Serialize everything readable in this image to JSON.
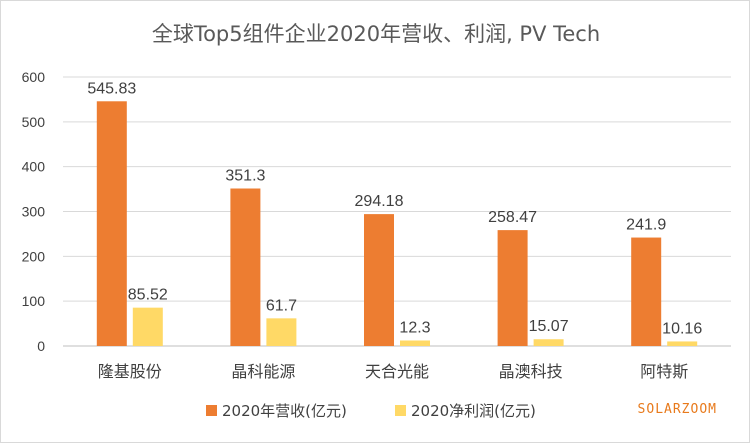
{
  "chart_data": {
    "type": "bar",
    "title": "全球Top5组件企业2020年营收、利润, PV Tech",
    "categories": [
      "隆基股份",
      "晶科能源",
      "天合光能",
      "晶澳科技",
      "阿特斯"
    ],
    "series": [
      {
        "name": "2020年营收(亿元)",
        "values": [
          545.83,
          351.3,
          294.18,
          258.47,
          241.9
        ],
        "color": "#ED7D31"
      },
      {
        "name": "2020净利润(亿元)",
        "values": [
          85.52,
          61.7,
          12.3,
          15.07,
          10.16
        ],
        "color": "#FFD966"
      }
    ],
    "data_labels": [
      [
        "545.83",
        "351.3",
        "294.18",
        "258.47",
        "241.9"
      ],
      [
        "85.52",
        "61.7",
        "12.3",
        "15.07",
        "10.16"
      ]
    ],
    "ylim": [
      0,
      600
    ],
    "yticks": [
      "0",
      "100",
      "200",
      "300",
      "400",
      "500",
      "600"
    ],
    "ytick_values": [
      0,
      100,
      200,
      300,
      400,
      500,
      600
    ],
    "grid": true,
    "legend_position": "bottom",
    "xlabel": "",
    "ylabel": ""
  },
  "watermark": "SOLARZOOM"
}
